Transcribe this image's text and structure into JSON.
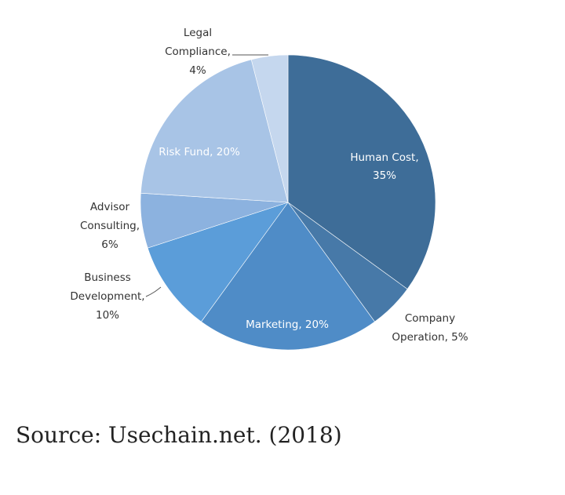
{
  "chart_data": {
    "type": "pie",
    "title": "",
    "slices": [
      {
        "key": "human_cost",
        "lines": [
          "Human Cost,",
          "35%"
        ],
        "value": 35,
        "color": "#3e6d98",
        "inside": true
      },
      {
        "key": "company_operation",
        "lines": [
          "Company",
          "Operation, 5%"
        ],
        "value": 5,
        "color": "#4779a8",
        "inside": false
      },
      {
        "key": "marketing",
        "lines": [
          "Marketing, 20%"
        ],
        "value": 20,
        "color": "#4f8cc7",
        "inside": true
      },
      {
        "key": "business_development",
        "lines": [
          "Business",
          "Development,",
          "10%"
        ],
        "value": 10,
        "color": "#5b9dd9",
        "inside": false
      },
      {
        "key": "advisor_consulting",
        "lines": [
          "Advisor",
          "Consulting,",
          "6%"
        ],
        "value": 6,
        "color": "#8cb2df",
        "inside": false
      },
      {
        "key": "risk_fund",
        "lines": [
          "Risk Fund, 20%"
        ],
        "value": 20,
        "color": "#a8c4e6",
        "inside": true
      },
      {
        "key": "legal_compliance",
        "lines": [
          "Legal",
          "Compliance,",
          "4%"
        ],
        "value": 4,
        "color": "#c5d7ee",
        "inside": false
      }
    ]
  },
  "source": "Source: Usechain.net. (2018)"
}
